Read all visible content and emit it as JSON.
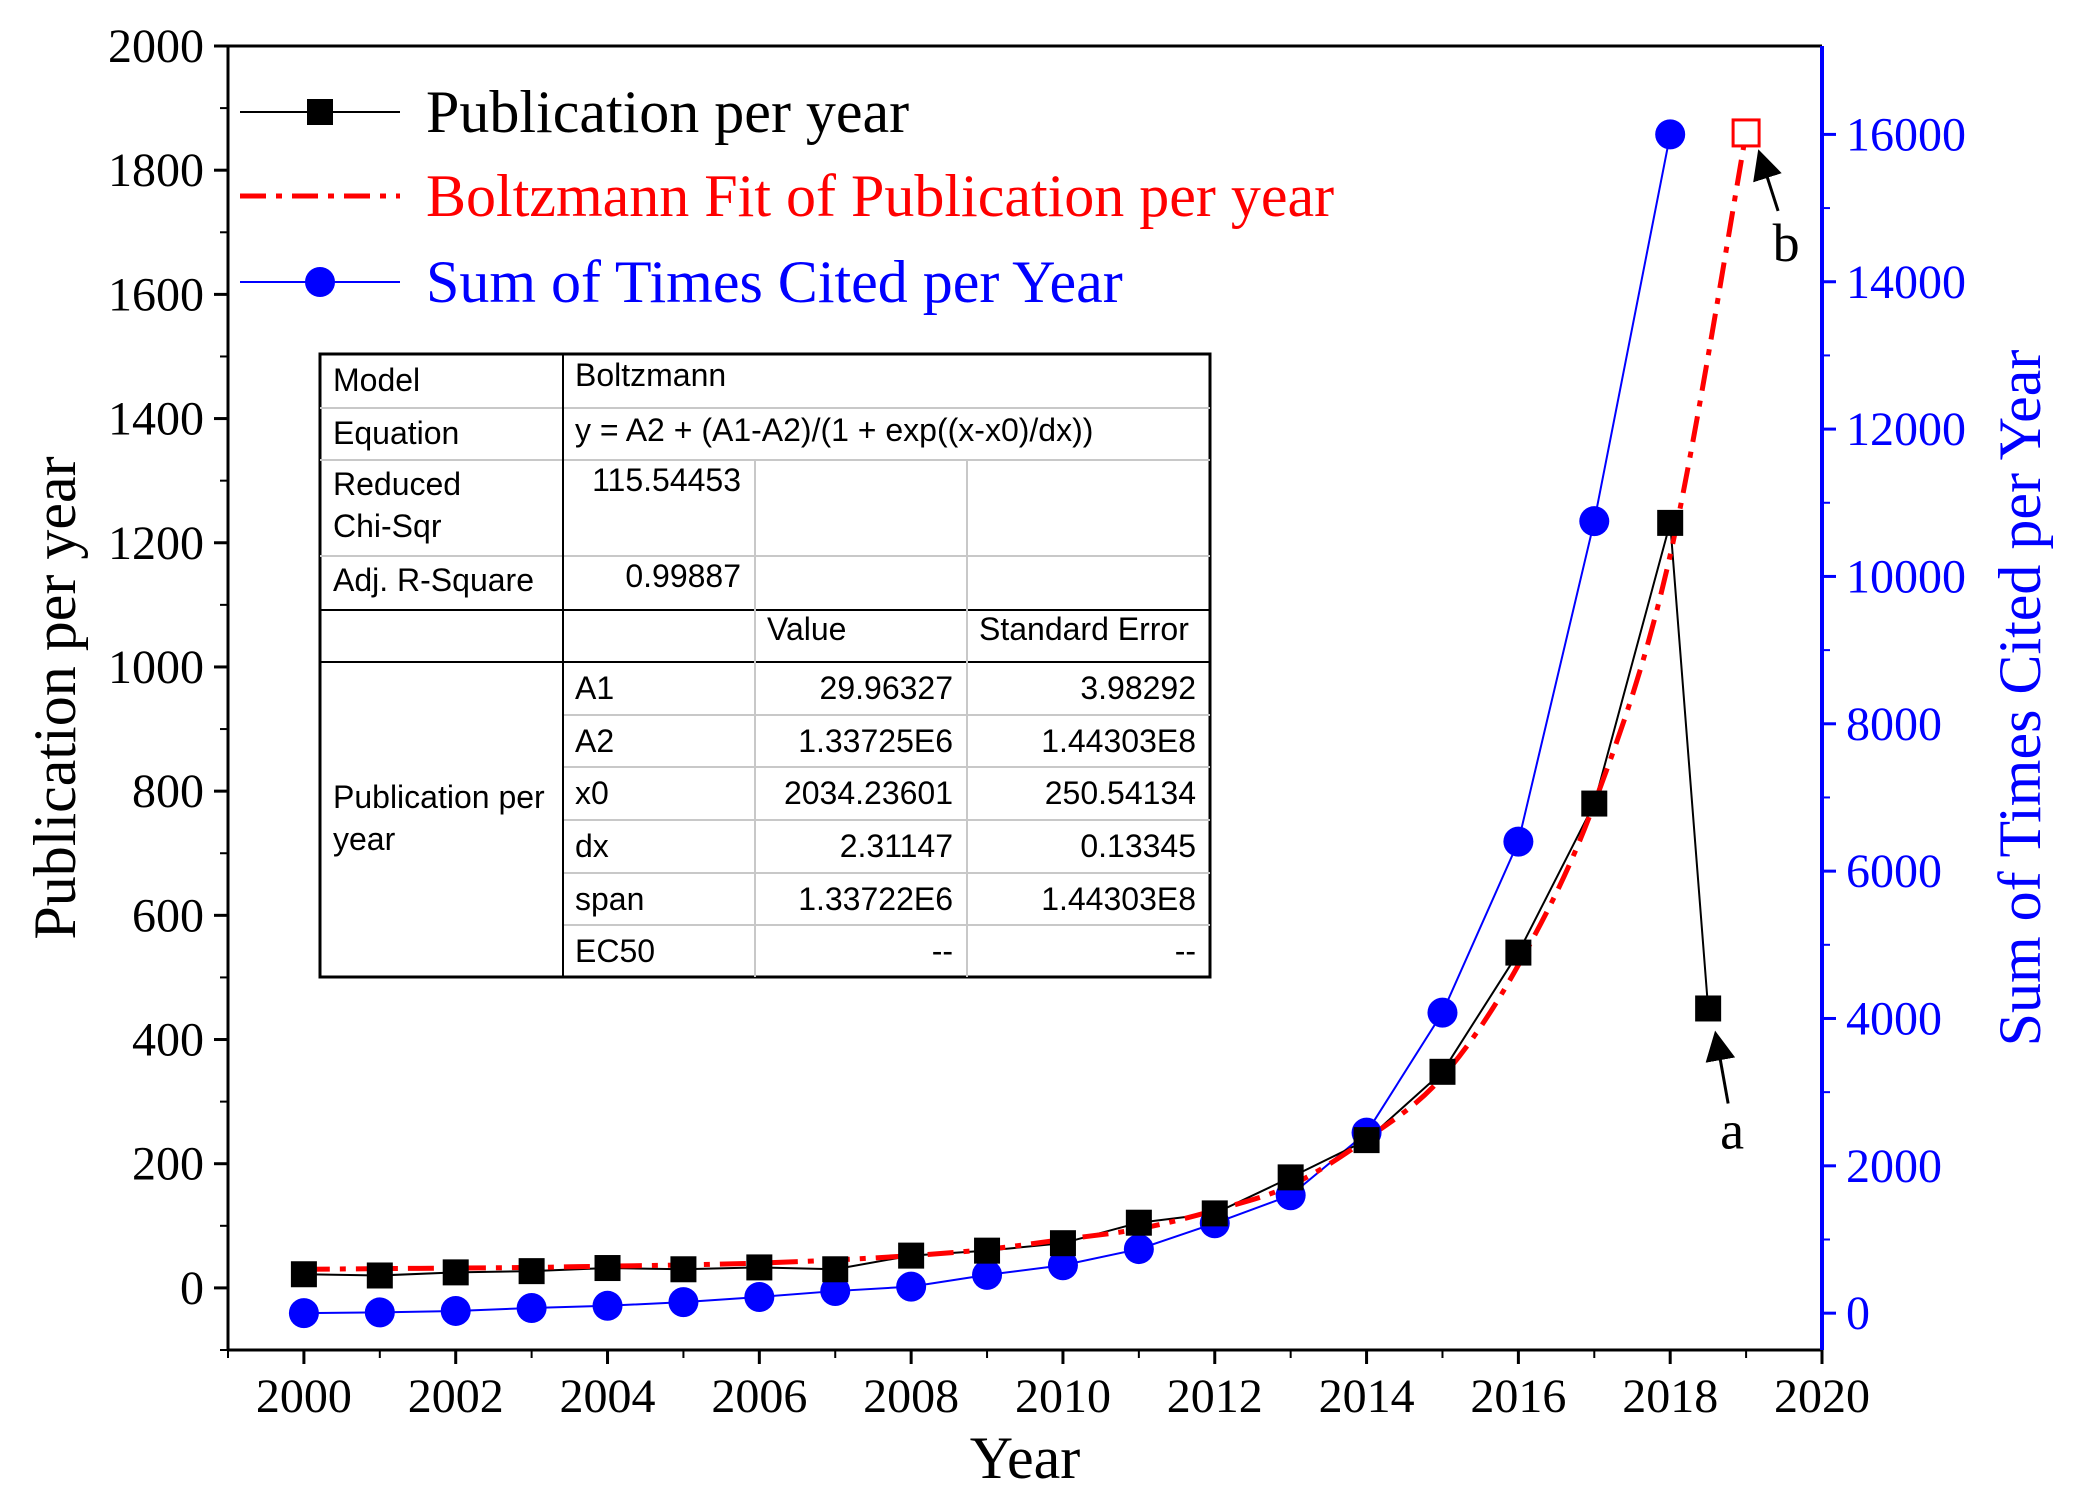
{
  "chart_data": {
    "type": "line",
    "x_axis": {
      "label": "Year",
      "range": [
        1999,
        2020
      ],
      "ticks": [
        2000,
        2002,
        2004,
        2006,
        2008,
        2010,
        2012,
        2014,
        2016,
        2018,
        2020
      ]
    },
    "y_axis_left": {
      "label": "Publication per year",
      "range": [
        -100,
        2000
      ],
      "ticks": [
        0,
        200,
        400,
        600,
        800,
        1000,
        1200,
        1400,
        1600,
        1800,
        2000
      ]
    },
    "y_axis_right": {
      "label": "Sum of Times Cited per Year",
      "range": [
        -500,
        17200
      ],
      "ticks": [
        0,
        2000,
        4000,
        6000,
        8000,
        10000,
        12000,
        14000,
        16000
      ],
      "color": "#0000ff"
    },
    "series": [
      {
        "name": "Publication per year",
        "axis": "left",
        "color": "#000000",
        "marker": "square",
        "points": [
          [
            2000,
            22
          ],
          [
            2001,
            20
          ],
          [
            2002,
            25
          ],
          [
            2003,
            27
          ],
          [
            2004,
            32
          ],
          [
            2005,
            30
          ],
          [
            2006,
            33
          ],
          [
            2007,
            30
          ],
          [
            2008,
            52
          ],
          [
            2009,
            60
          ],
          [
            2010,
            72
          ],
          [
            2011,
            105
          ],
          [
            2012,
            120
          ],
          [
            2013,
            178
          ],
          [
            2014,
            238
          ],
          [
            2015,
            348
          ],
          [
            2016,
            540
          ],
          [
            2017,
            780
          ],
          [
            2018,
            1232
          ],
          [
            2018.5,
            450
          ]
        ]
      },
      {
        "name": "Boltzmann Fit of Publication per year",
        "axis": "left",
        "color": "#ff0000",
        "style": "dash-dot",
        "points": [
          [
            2000,
            30
          ],
          [
            2001,
            31
          ],
          [
            2002,
            32
          ],
          [
            2003,
            33
          ],
          [
            2004,
            35
          ],
          [
            2005,
            37
          ],
          [
            2006,
            40
          ],
          [
            2007,
            45
          ],
          [
            2008,
            52
          ],
          [
            2009,
            62
          ],
          [
            2010,
            78
          ],
          [
            2011,
            95
          ],
          [
            2012,
            125
          ],
          [
            2013,
            165
          ],
          [
            2014,
            240
          ],
          [
            2015,
            340
          ],
          [
            2016,
            520
          ],
          [
            2017,
            780
          ],
          [
            2018,
            1180
          ],
          [
            2019,
            1860
          ]
        ],
        "predicted_point": [
          2019,
          1860
        ]
      },
      {
        "name": "Sum of Times Cited per Year",
        "axis": "right",
        "color": "#0000ff",
        "marker": "circle",
        "points": [
          [
            2000,
            0
          ],
          [
            2001,
            10
          ],
          [
            2002,
            30
          ],
          [
            2003,
            70
          ],
          [
            2004,
            100
          ],
          [
            2005,
            150
          ],
          [
            2006,
            220
          ],
          [
            2007,
            300
          ],
          [
            2008,
            360
          ],
          [
            2009,
            520
          ],
          [
            2010,
            650
          ],
          [
            2011,
            870
          ],
          [
            2012,
            1220
          ],
          [
            2013,
            1600
          ],
          [
            2014,
            2450
          ],
          [
            2015,
            4080
          ],
          [
            2016,
            6400
          ],
          [
            2017,
            10750
          ],
          [
            2018,
            16000
          ]
        ]
      }
    ],
    "annotations": [
      {
        "text": "a",
        "target": [
          2018.5,
          450
        ]
      },
      {
        "text": "b",
        "target": [
          2019,
          1860
        ]
      }
    ],
    "legend": {
      "placement": "top-left",
      "entries": [
        {
          "label": "Publication per year",
          "color": "#000000",
          "marker": "square"
        },
        {
          "label": "Boltzmann Fit of Publication per year",
          "color": "#ff0000",
          "style": "dash-dot"
        },
        {
          "label": "Sum of Times Cited per Year",
          "color": "#0000ff",
          "marker": "circle"
        }
      ]
    },
    "fit_table": {
      "placement": "upper-left",
      "rows_top": [
        [
          "Model",
          "Boltzmann"
        ],
        [
          "Equation",
          "y = A2 + (A1-A2)/(1 + exp((x-x0)/dx))"
        ],
        [
          "Reduced\nChi-Sqr",
          "115.54453"
        ],
        [
          "Adj. R-Square",
          "0.99887"
        ]
      ],
      "header": [
        "",
        "",
        "Value",
        "Standard Error"
      ],
      "group_label": "Publication per\nyear",
      "params": [
        [
          "A1",
          "29.96327",
          "3.98292"
        ],
        [
          "A2",
          "1.33725E6",
          "1.44303E8"
        ],
        [
          "x0",
          "2034.23601",
          "250.54134"
        ],
        [
          "dx",
          "2.31147",
          "0.13345"
        ],
        [
          "span",
          "1.33722E6",
          "1.44303E8"
        ],
        [
          "EC50",
          "--",
          "--"
        ]
      ]
    }
  }
}
